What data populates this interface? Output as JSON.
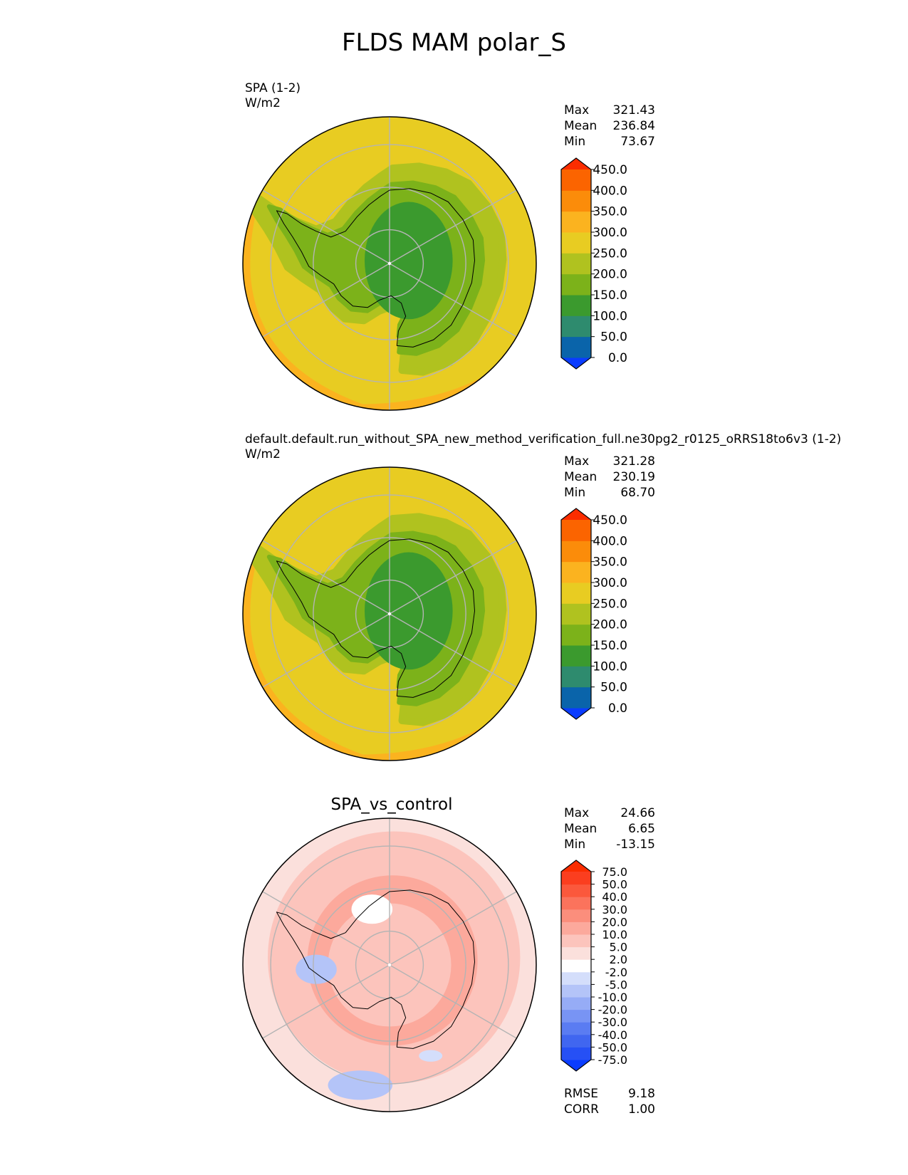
{
  "figure": {
    "title": "FLDS MAM polar_S"
  },
  "panels": [
    {
      "title": "",
      "name": "SPA (1-2)",
      "units": "W/m2",
      "stats": [
        {
          "label": "Max",
          "value": "321.43"
        },
        {
          "label": "Mean",
          "value": "236.84"
        },
        {
          "label": "Min",
          "value": "73.67"
        }
      ]
    },
    {
      "title": "",
      "name": "default.default.run_without_SPA_new_method_verification_full.ne30pg2_r0125_oRRS18to6v3 (1-2)",
      "units": "W/m2",
      "stats": [
        {
          "label": "Max",
          "value": "321.28"
        },
        {
          "label": "Mean",
          "value": "230.19"
        },
        {
          "label": "Min",
          "value": "68.70"
        }
      ]
    },
    {
      "title": "SPA_vs_control",
      "name": "",
      "units": "",
      "stats": [
        {
          "label": "Max",
          "value": "24.66"
        },
        {
          "label": "Mean",
          "value": "6.65"
        },
        {
          "label": "Min",
          "value": "-13.15"
        }
      ],
      "metrics": [
        {
          "label": "RMSE",
          "value": "9.18"
        },
        {
          "label": "CORR",
          "value": "1.00"
        }
      ]
    }
  ],
  "chart_data": [
    {
      "type": "heatmap",
      "projection": "south-polar-stereographic",
      "variable": "FLDS",
      "colorbar": {
        "levels": [
          0,
          50,
          100,
          150,
          200,
          250,
          300,
          350,
          400,
          450
        ],
        "tick_labels": [
          "0.0",
          "50.0",
          "100.0",
          "150.0",
          "200.0",
          "250.0",
          "300.0",
          "350.0",
          "400.0",
          "450.0"
        ],
        "colors": [
          "#0a3cff",
          "#0a64aa",
          "#2e8b6e",
          "#3b9a2e",
          "#7cb21a",
          "#b0c21f",
          "#e8cc22",
          "#fbb31f",
          "#fb8c0a",
          "#fb6400",
          "#fb2d00"
        ],
        "extend": "both"
      },
      "field_summary": {
        "pole": 90,
        "continent_interior": 110,
        "continent_edge": 180,
        "sea_ice_zone": 240,
        "ocean": 290,
        "outer_ocean": 330
      }
    },
    {
      "type": "heatmap",
      "projection": "south-polar-stereographic",
      "variable": "FLDS",
      "colorbar": {
        "levels": [
          0,
          50,
          100,
          150,
          200,
          250,
          300,
          350,
          400,
          450
        ],
        "tick_labels": [
          "0.0",
          "50.0",
          "100.0",
          "150.0",
          "200.0",
          "250.0",
          "300.0",
          "350.0",
          "400.0",
          "450.0"
        ],
        "colors": [
          "#0a3cff",
          "#0a64aa",
          "#2e8b6e",
          "#3b9a2e",
          "#7cb21a",
          "#b0c21f",
          "#e8cc22",
          "#fbb31f",
          "#fb8c0a",
          "#fb6400",
          "#fb2d00"
        ],
        "extend": "both"
      },
      "field_summary": {
        "pole": 85,
        "continent_interior": 105,
        "continent_edge": 170,
        "sea_ice_zone": 230,
        "ocean": 285,
        "outer_ocean": 325
      }
    },
    {
      "type": "heatmap",
      "projection": "south-polar-stereographic",
      "variable": "FLDS difference",
      "colorbar": {
        "levels": [
          -75,
          -50,
          -40,
          -30,
          -20,
          -10,
          -5,
          -2,
          2,
          5,
          10,
          20,
          30,
          40,
          50,
          75
        ],
        "tick_labels": [
          "-75.0",
          "-50.0",
          "-40.0",
          "-30.0",
          "-20.0",
          "-10.0",
          "-5.0",
          "-2.0",
          "2.0",
          "5.0",
          "10.0",
          "20.0",
          "30.0",
          "40.0",
          "50.0",
          "75.0"
        ],
        "colors": [
          "#0a3cff",
          "#2650f5",
          "#4066f0",
          "#5a7cf2",
          "#7894f4",
          "#96acf6",
          "#b4c4f8",
          "#d4defb",
          "#ffffff",
          "#fbe0dc",
          "#fcc4bc",
          "#fca99c",
          "#fb8e7c",
          "#fb735c",
          "#fb583c",
          "#fb3e1f",
          "#fb2d00"
        ],
        "extend": "both"
      },
      "field_summary": {
        "ring_70S": 12,
        "ring_60S": 8,
        "weddell_sea": -6,
        "ross_sea_offshore": -6,
        "outer_ocean": 2
      }
    }
  ]
}
